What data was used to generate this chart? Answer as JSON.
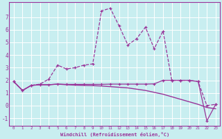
{
  "xlabel": "Windchill (Refroidissement éolien,°C)",
  "bg_color": "#c8eef0",
  "grid_color": "#ffffff",
  "line_color": "#993399",
  "x_ticks": [
    0,
    1,
    2,
    3,
    4,
    5,
    6,
    7,
    8,
    9,
    10,
    11,
    12,
    13,
    14,
    15,
    16,
    17,
    18,
    19,
    20,
    21,
    22,
    23
  ],
  "y_ticks": [
    -1,
    0,
    1,
    2,
    3,
    4,
    5,
    6,
    7
  ],
  "ylim": [
    -1.6,
    8.2
  ],
  "xlim": [
    -0.5,
    23.5
  ],
  "series1_x": [
    0,
    1,
    2,
    3,
    4,
    5,
    6,
    7,
    8,
    9,
    10,
    11,
    12,
    13,
    14,
    15,
    16,
    17,
    18,
    19,
    20,
    21,
    22,
    23
  ],
  "series1_y": [
    1.9,
    1.2,
    1.6,
    1.7,
    2.1,
    3.2,
    2.9,
    3.0,
    3.2,
    3.3,
    7.5,
    7.7,
    6.3,
    4.8,
    5.3,
    6.2,
    4.5,
    5.9,
    2.0,
    2.0,
    2.0,
    1.9,
    0.0,
    0.1
  ],
  "series2_x": [
    0,
    1,
    2,
    3,
    4,
    5,
    6,
    7,
    8,
    9,
    10,
    11,
    12,
    13,
    14,
    15,
    16,
    17,
    18,
    19,
    20,
    21,
    22,
    23
  ],
  "series2_y": [
    1.9,
    1.2,
    1.6,
    1.65,
    1.65,
    1.7,
    1.65,
    1.62,
    1.6,
    1.58,
    1.55,
    1.5,
    1.45,
    1.4,
    1.3,
    1.2,
    1.05,
    0.9,
    0.7,
    0.5,
    0.3,
    0.1,
    -0.15,
    -0.25
  ],
  "series3_x": [
    0,
    1,
    2,
    3,
    4,
    5,
    6,
    7,
    8,
    9,
    10,
    11,
    12,
    13,
    14,
    15,
    16,
    17,
    18,
    19,
    20,
    21,
    22,
    23
  ],
  "series3_y": [
    1.9,
    1.2,
    1.6,
    1.65,
    1.65,
    1.7,
    1.68,
    1.68,
    1.68,
    1.68,
    1.68,
    1.7,
    1.7,
    1.7,
    1.7,
    1.7,
    1.72,
    2.0,
    2.0,
    2.0,
    2.0,
    1.9,
    -1.2,
    0.1
  ]
}
